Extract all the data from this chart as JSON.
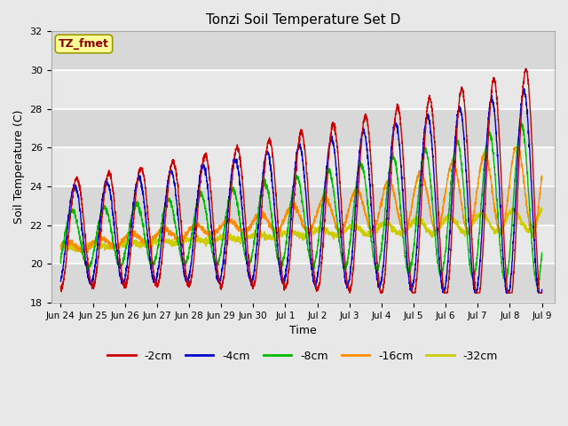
{
  "title": "Tonzi Soil Temperature Set D",
  "xlabel": "Time",
  "ylabel": "Soil Temperature (C)",
  "ylim": [
    18,
    32
  ],
  "series": {
    "2cm": {
      "color": "#CC0000",
      "label": "-2cm"
    },
    "4cm": {
      "color": "#0000CC",
      "label": "-4cm"
    },
    "8cm": {
      "color": "#00BB00",
      "label": "-8cm"
    },
    "16cm": {
      "color": "#FF8C00",
      "label": "-16cm"
    },
    "32cm": {
      "color": "#CCCC00",
      "label": "-32cm"
    }
  },
  "tick_labels": [
    "Jun 24",
    "Jun 25",
    "Jun 26",
    "Jun 27",
    "Jun 28",
    "Jun 29",
    "Jun 30",
    "Jul 1",
    "Jul 2",
    "Jul 3",
    "Jul 4",
    "Jul 5",
    "Jul 6",
    "Jul 7",
    "Jul 8",
    "Jul 9"
  ],
  "tick_positions": [
    0,
    1,
    2,
    3,
    4,
    5,
    6,
    7,
    8,
    9,
    10,
    11,
    12,
    13,
    14,
    15
  ],
  "annotation_text": "TZ_fmet",
  "annotation_color": "#8B0000",
  "annotation_bg": "#FFFF99",
  "annotation_border": "#999900",
  "bg_color": "#E8E8E8",
  "plot_bg": "#E8E8E8",
  "grid_color": "#FFFFFF",
  "yticks": [
    18,
    20,
    22,
    24,
    26,
    28,
    30,
    32
  ]
}
